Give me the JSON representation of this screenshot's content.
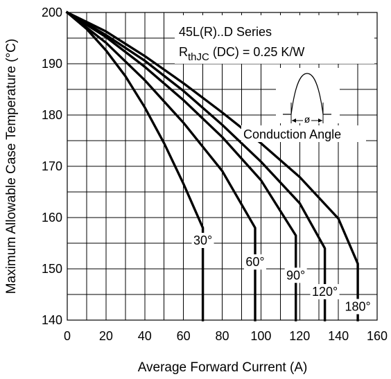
{
  "chart_data": {
    "type": "line",
    "title": "",
    "xlabel": "Average Forward Current (A)",
    "ylabel": "Maximum Allowable Case Temperature (°C)",
    "xlim": [
      0,
      160
    ],
    "ylim": [
      140,
      200
    ],
    "x_ticks": [
      0,
      20,
      40,
      60,
      80,
      100,
      120,
      140,
      160
    ],
    "y_ticks": [
      140,
      150,
      160,
      170,
      180,
      190,
      200
    ],
    "grid": true,
    "annotations": {
      "series_line": "45L(R)..D Series",
      "rth_main": "R",
      "rth_sub": "thJC",
      "rth_rest": " (DC) = 0.25 K/W",
      "phi_symbol": "ø",
      "conduction_label": "Conduction Angle"
    },
    "series": [
      {
        "name": "30°",
        "x": [
          0,
          10,
          20,
          30,
          40,
          50,
          60,
          70,
          70,
          70
        ],
        "y": [
          200,
          196.8,
          192.6,
          187.6,
          181.5,
          174.5,
          166.6,
          158,
          158,
          140
        ]
      },
      {
        "name": "60°",
        "x": [
          0,
          20,
          40,
          60,
          80,
          97,
          97,
          97
        ],
        "y": [
          200,
          194.1,
          186.8,
          178.5,
          169.1,
          158,
          158,
          140
        ]
      },
      {
        "name": "90°",
        "x": [
          0,
          20,
          40,
          60,
          80,
          100,
          118,
          118,
          118
        ],
        "y": [
          200,
          195.2,
          189.4,
          182.9,
          175.7,
          167.3,
          156.5,
          156.5,
          140
        ]
      },
      {
        "name": "120°",
        "x": [
          0,
          20,
          40,
          60,
          80,
          100,
          120,
          133,
          133
        ],
        "y": [
          200,
          195.6,
          190.6,
          184.7,
          178.1,
          170.9,
          162.8,
          154,
          140
        ]
      },
      {
        "name": "180°",
        "x": [
          0,
          20,
          40,
          60,
          80,
          100,
          120,
          140,
          150,
          150
        ],
        "y": [
          200,
          196.3,
          191.5,
          186.2,
          180.5,
          174.5,
          167.9,
          159.8,
          151,
          140
        ]
      }
    ]
  }
}
